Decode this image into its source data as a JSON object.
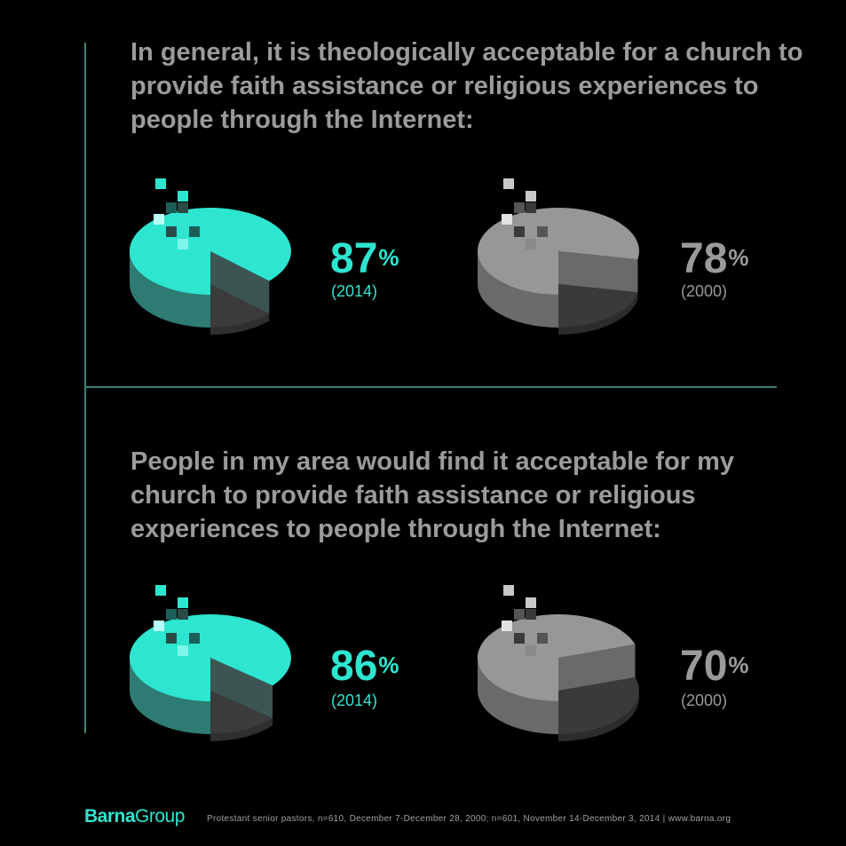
{
  "questions": {
    "q1": "In general, it is theologically acceptable for a church to provide faith assistance or religious experiences to people through the Internet:",
    "q2": "People in my area would find it acceptable for my church to provide faith assistance or religious experiences to people through the Internet:"
  },
  "chart_data": [
    {
      "type": "pie",
      "label": "87",
      "unit": "%",
      "year": "(2014)",
      "values": [
        87,
        13
      ],
      "color": "#2ee5d0"
    },
    {
      "type": "pie",
      "label": "78",
      "unit": "%",
      "year": "(2000)",
      "values": [
        78,
        22
      ],
      "color": "#9a9a9a"
    },
    {
      "type": "pie",
      "label": "86",
      "unit": "%",
      "year": "(2014)",
      "values": [
        86,
        14
      ],
      "color": "#2ee5d0"
    },
    {
      "type": "pie",
      "label": "70",
      "unit": "%",
      "year": "(2000)",
      "values": [
        70,
        30
      ],
      "color": "#9a9a9a"
    }
  ],
  "footer": {
    "brand_bold": "Barna",
    "brand_light": "Group",
    "source": "Protestant senior pastors, n=610, December 7-December 28, 2000; n=601, November 14-December 3, 2014 | www.barna.org"
  },
  "colors": {
    "accent": "#2ee5d0",
    "text_gray": "#9a9a9a",
    "divider": "#3f7f79",
    "background": "#000000"
  }
}
